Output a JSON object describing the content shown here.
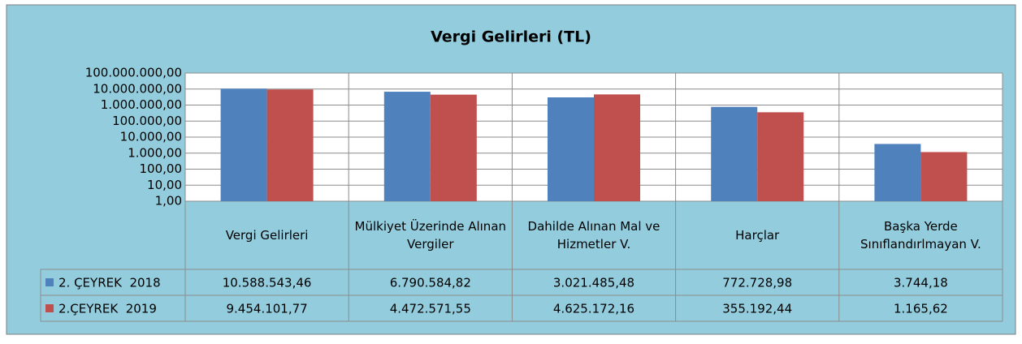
{
  "chart_data": {
    "type": "bar",
    "title": "Vergi Gelirleri (TL)",
    "categories": [
      "Vergi Gelirleri",
      "Mülkiyet Üzerinde Alınan Vergiler",
      "Dahilde Alınan Mal ve Hizmetler V.",
      "Harçlar",
      "Başka Yerde Sınıflandırlmayan V."
    ],
    "series": [
      {
        "name": "2. ÇEYREK  2018",
        "color": "#4f81bd",
        "values": [
          10588543.46,
          6790584.82,
          3021485.48,
          772728.98,
          3744.18
        ],
        "value_labels": [
          "10.588.543,46",
          "6.790.584,82",
          "3.021.485,48",
          "772.728,98",
          "3.744,18"
        ]
      },
      {
        "name": "2.ÇEYREK  2019",
        "color": "#c0504d",
        "values": [
          9454101.77,
          4472571.55,
          4625172.16,
          355192.44,
          1165.62
        ],
        "value_labels": [
          "9.454.101,77",
          "4.472.571,55",
          "4.625.172,16",
          "355.192,44",
          "1.165,62"
        ]
      }
    ],
    "log_scale": true,
    "grid": true,
    "ylim": [
      1,
      100000000
    ],
    "yticks": [
      {
        "value": 1,
        "label": "1,00"
      },
      {
        "value": 10,
        "label": "10,00"
      },
      {
        "value": 100,
        "label": "100,00"
      },
      {
        "value": 1000,
        "label": "1.000,00"
      },
      {
        "value": 10000,
        "label": "10.000,00"
      },
      {
        "value": 100000,
        "label": "100.000,00"
      },
      {
        "value": 1000000,
        "label": "1.000.000,00"
      },
      {
        "value": 10000000,
        "label": "10.000.000,00"
      },
      {
        "value": 100000000,
        "label": "100.000.000,00"
      }
    ]
  }
}
